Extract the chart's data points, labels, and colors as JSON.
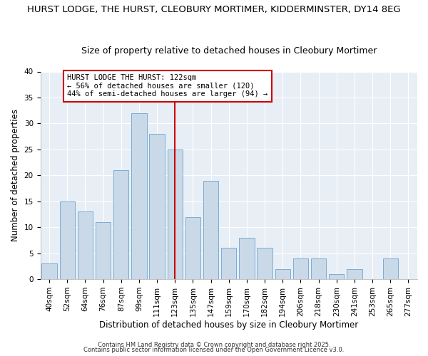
{
  "title1": "HURST LODGE, THE HURST, CLEOBURY MORTIMER, KIDDERMINSTER, DY14 8EG",
  "title2": "Size of property relative to detached houses in Cleobury Mortimer",
  "xlabel": "Distribution of detached houses by size in Cleobury Mortimer",
  "ylabel": "Number of detached properties",
  "bar_labels": [
    "40sqm",
    "52sqm",
    "64sqm",
    "76sqm",
    "87sqm",
    "99sqm",
    "111sqm",
    "123sqm",
    "135sqm",
    "147sqm",
    "159sqm",
    "170sqm",
    "182sqm",
    "194sqm",
    "206sqm",
    "218sqm",
    "230sqm",
    "241sqm",
    "253sqm",
    "265sqm",
    "277sqm"
  ],
  "bar_values": [
    3,
    15,
    13,
    11,
    21,
    32,
    28,
    25,
    12,
    19,
    6,
    8,
    6,
    2,
    4,
    4,
    1,
    2,
    0,
    4,
    0
  ],
  "bar_color": "#c9d9e8",
  "bar_edge_color": "#7aadd4",
  "vline_color": "#cc0000",
  "annotation_text": "HURST LODGE THE HURST: 122sqm\n← 56% of detached houses are smaller (120)\n44% of semi-detached houses are larger (94) →",
  "annotation_box_color": "#ffffff",
  "annotation_box_edge": "#cc0000",
  "footer1": "Contains HM Land Registry data © Crown copyright and database right 2025.",
  "footer2": "Contains public sector information licensed under the Open Government Licence v3.0.",
  "background_color": "#e8eef5",
  "grid_color": "#ffffff",
  "ylim": [
    0,
    40
  ],
  "title1_fontsize": 9.5,
  "title2_fontsize": 9.0,
  "xlabel_fontsize": 8.5,
  "ylabel_fontsize": 8.5,
  "tick_fontsize": 7.5,
  "footer_fontsize": 6.0,
  "ann_fontsize": 7.5
}
